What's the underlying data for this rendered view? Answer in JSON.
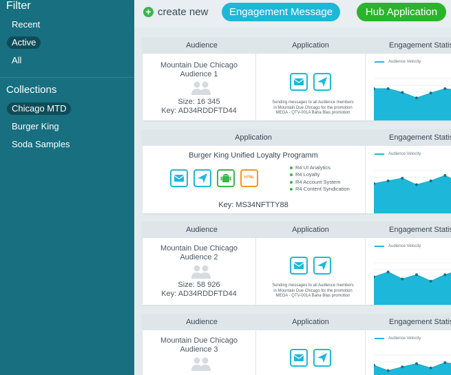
{
  "sidebar": {
    "filter_heading": "Filter",
    "filters": [
      {
        "label": "Recent",
        "selected": false
      },
      {
        "label": "Active",
        "selected": true
      },
      {
        "label": "All",
        "selected": false
      }
    ],
    "collections_heading": "Collections",
    "collections": [
      {
        "label": "Chicago MTD",
        "selected": true
      },
      {
        "label": "Burger King",
        "selected": false
      },
      {
        "label": "Soda Samples",
        "selected": false
      }
    ]
  },
  "toolbar": {
    "create_new_label": "create new",
    "engagement_button": "Engagement Message",
    "hub_button": "Hub Application"
  },
  "colors": {
    "sidebar_bg": "#176f7f",
    "accent_cyan": "#1db8d9",
    "accent_green": "#2bb42b"
  },
  "cards": [
    {
      "audience_header": "Audience",
      "application_header": "Application",
      "stats_header": "Engagement Statistics",
      "name_line1": "Mountain Due Chicago",
      "name_line2": "Audience 1",
      "size": "Size: 16 345",
      "key": "Key: AD34RDDFTD44",
      "desc_line1": "Sending messages to all Audience members",
      "desc_line2": "in Mountain Due Chicago for the promotion",
      "desc_line3": "MEGA - QTV-001A Baha Blas promotion",
      "legend": "Audience Velocity",
      "chart_values": [
        55,
        55,
        48,
        38,
        47,
        55,
        52
      ]
    },
    {
      "application_header": "Application",
      "stats_header": "Engagement Statistics",
      "title": "Burger King Unified Loyalty Programm",
      "features": [
        "R4 UI Analytics",
        "R4 Loyalty",
        "R4 Account System",
        "R4 Content Syndication"
      ],
      "html_icon_label": "HTML",
      "key": "Key: MS34NFTTY88",
      "legend": "Audience Velocity",
      "chart_values": [
        50,
        55,
        60,
        48,
        55,
        65,
        52
      ]
    },
    {
      "audience_header": "Audience",
      "application_header": "Application",
      "stats_header": "Engagement Statistics",
      "name_line1": "Mountain Due Chicago",
      "name_line2": "Audience 2",
      "size": "Size: 58 926",
      "key": "Key: AD34RDDFTD44",
      "desc_line1": "Sending messages to all Audience members",
      "desc_line2": "in Mountain Due Chicago for the promotion",
      "desc_line3": "MEGA - QTV-001A Baha Blas promotion",
      "legend": "Audience Velocity",
      "chart_values": [
        48,
        57,
        44,
        52,
        40,
        52,
        60
      ]
    },
    {
      "audience_header": "Audience",
      "application_header": "Application",
      "stats_header": "Engagement Statistics",
      "name_line1": "Mountain Due Chicago",
      "name_line2": "Audience 3",
      "legend": "Audience Velocity",
      "chart_values": [
        55,
        45,
        52,
        58,
        50,
        60,
        56
      ]
    }
  ]
}
